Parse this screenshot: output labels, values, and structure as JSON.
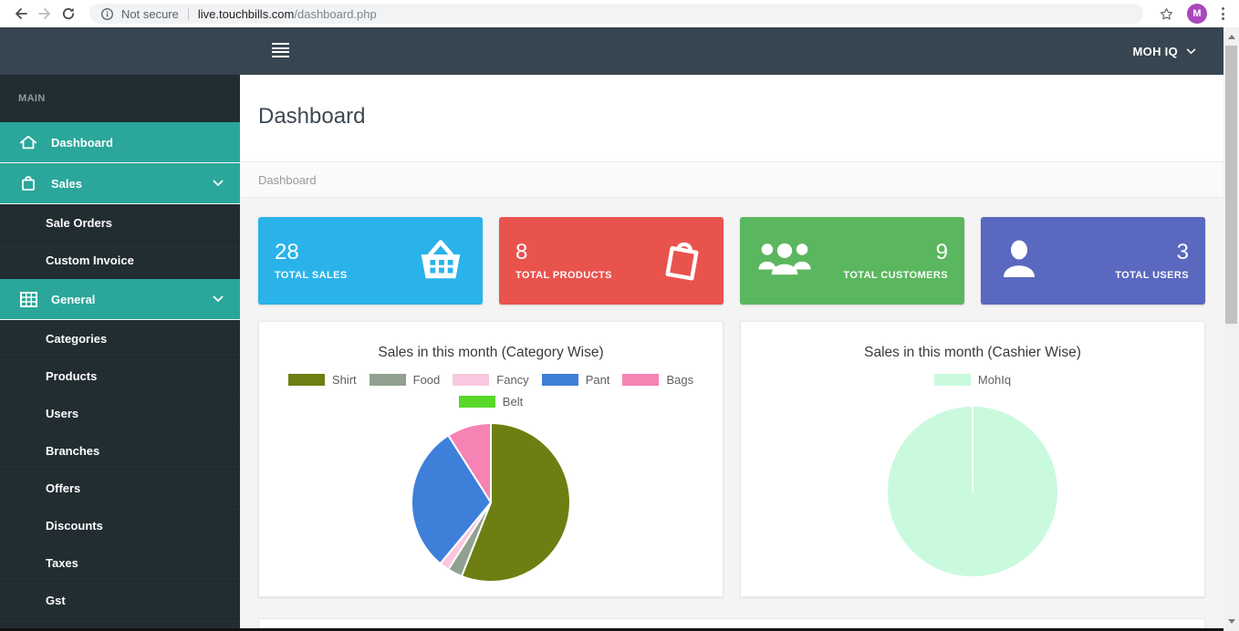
{
  "browser": {
    "security_label": "Not secure",
    "url_host": "live.touchbills.com",
    "url_path": "/dashboard.php",
    "avatar_letter": "M"
  },
  "navbar": {
    "user_menu_label": "MOH IQ"
  },
  "sidebar": {
    "section_label": "MAIN",
    "active_color": "#2aa79a",
    "items": [
      {
        "label": "Dashboard",
        "icon": "home-icon",
        "active": true
      },
      {
        "label": "Sales",
        "icon": "bag-icon",
        "active": true,
        "expanded": true
      },
      {
        "label": "Sale Orders",
        "sub": true
      },
      {
        "label": "Custom Invoice",
        "sub": true
      },
      {
        "label": "General",
        "icon": "grid-icon",
        "active": true,
        "expanded": true
      },
      {
        "label": "Categories",
        "sub": true
      },
      {
        "label": "Products",
        "sub": true
      },
      {
        "label": "Users",
        "sub": true
      },
      {
        "label": "Branches",
        "sub": true
      },
      {
        "label": "Offers",
        "sub": true
      },
      {
        "label": "Discounts",
        "sub": true
      },
      {
        "label": "Taxes",
        "sub": true
      },
      {
        "label": "Gst",
        "sub": true
      }
    ]
  },
  "page": {
    "title": "Dashboard",
    "breadcrumb": "Dashboard"
  },
  "stats": [
    {
      "value": "28",
      "label": "TOTAL SALES",
      "color": "#2ab3ea",
      "icon": "shopping-basket-icon"
    },
    {
      "value": "8",
      "label": "TOTAL PRODUCTS",
      "color": "#e9534e",
      "icon": "shopping-bag-icon"
    },
    {
      "value": "9",
      "label": "TOTAL CUSTOMERS",
      "color": "#5bb75f",
      "icon": "people-group-icon"
    },
    {
      "value": "3",
      "label": "TOTAL USERS",
      "color": "#5a68bf",
      "icon": "person-icon"
    }
  ],
  "chart_data": [
    {
      "type": "pie",
      "title": "Sales in this month (Category Wise)",
      "values_are": "percent_of_pie",
      "legend_position": "top",
      "series": [
        {
          "name": "Shirt",
          "value": 56,
          "color": "#6d7f12"
        },
        {
          "name": "Food",
          "value": 3,
          "color": "#90a190"
        },
        {
          "name": "Fancy",
          "value": 2,
          "color": "#f9c8e0"
        },
        {
          "name": "Pant",
          "value": 30,
          "color": "#3d7fd9"
        },
        {
          "name": "Bags",
          "value": 9,
          "color": "#f583b4"
        },
        {
          "name": "Belt",
          "value": 0,
          "color": "#59d829"
        }
      ]
    },
    {
      "type": "pie",
      "title": "Sales in this month (Cashier Wise)",
      "values_are": "percent_of_pie",
      "legend_position": "top",
      "series": [
        {
          "name": "MohIq",
          "value": 100,
          "color": "#c9fadd"
        }
      ]
    }
  ]
}
